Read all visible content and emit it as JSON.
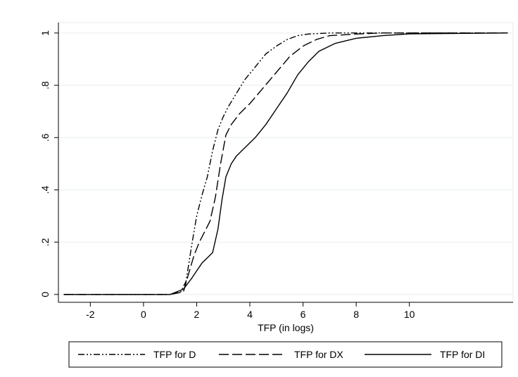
{
  "chart_data": {
    "type": "line",
    "title": "",
    "xlabel": "TFP (in logs)",
    "ylabel": "",
    "xlim": [
      -3.2,
      13.9
    ],
    "ylim": [
      -0.03,
      1.04
    ],
    "x_ticks": [
      {
        "value": -2,
        "label": "-2"
      },
      {
        "value": 0,
        "label": "0"
      },
      {
        "value": 2,
        "label": "2"
      },
      {
        "value": 4,
        "label": "4"
      },
      {
        "value": 6,
        "label": "6"
      },
      {
        "value": 8,
        "label": "8"
      },
      {
        "value": 10,
        "label": "10"
      }
    ],
    "y_ticks": [
      {
        "value": 0,
        "label": "0"
      },
      {
        "value": 0.2,
        "label": ".2"
      },
      {
        "value": 0.4,
        "label": ".4"
      },
      {
        "value": 0.6,
        "label": ".6"
      },
      {
        "value": 0.8,
        "label": ".8"
      },
      {
        "value": 1,
        "label": "1"
      }
    ],
    "grid": "horizontal",
    "legend_position": "bottom",
    "series": [
      {
        "name": "TFP for D",
        "dash": "dash-dot-dot",
        "x": [
          -3,
          -1,
          1,
          1.4,
          1.6,
          1.8,
          2.0,
          2.2,
          2.4,
          2.6,
          2.8,
          3.0,
          3.2,
          3.5,
          3.8,
          4.2,
          4.6,
          5.0,
          5.4,
          5.8,
          6.2,
          7.0,
          9.0,
          13.7
        ],
        "y": [
          0,
          0,
          0,
          0.01,
          0.05,
          0.18,
          0.3,
          0.38,
          0.45,
          0.55,
          0.63,
          0.68,
          0.72,
          0.77,
          0.82,
          0.87,
          0.92,
          0.95,
          0.975,
          0.99,
          0.996,
          1,
          1,
          1
        ]
      },
      {
        "name": "TFP for DX",
        "dash": "long-dash",
        "x": [
          -3,
          -1,
          1,
          1.5,
          1.7,
          1.9,
          2.1,
          2.3,
          2.5,
          2.7,
          2.9,
          3.1,
          3.3,
          3.6,
          4.0,
          4.5,
          5.0,
          5.5,
          6.0,
          6.5,
          7.0,
          8.0,
          9.0,
          13.7
        ],
        "y": [
          0,
          0,
          0,
          0.01,
          0.08,
          0.15,
          0.2,
          0.24,
          0.28,
          0.37,
          0.5,
          0.61,
          0.65,
          0.69,
          0.73,
          0.79,
          0.85,
          0.91,
          0.95,
          0.975,
          0.99,
          0.996,
          1,
          1
        ]
      },
      {
        "name": "TFP for DI",
        "dash": "solid",
        "x": [
          -3,
          -1,
          1,
          1.5,
          1.8,
          2.0,
          2.2,
          2.4,
          2.6,
          2.8,
          2.95,
          3.1,
          3.3,
          3.5,
          3.8,
          4.2,
          4.6,
          5.0,
          5.4,
          5.8,
          6.2,
          6.6,
          7.2,
          8.0,
          9.0,
          10.0,
          13.7
        ],
        "y": [
          0,
          0,
          0,
          0.02,
          0.06,
          0.09,
          0.12,
          0.14,
          0.16,
          0.25,
          0.36,
          0.45,
          0.5,
          0.53,
          0.56,
          0.6,
          0.65,
          0.71,
          0.77,
          0.84,
          0.89,
          0.93,
          0.96,
          0.98,
          0.99,
          0.997,
          1
        ]
      }
    ]
  }
}
